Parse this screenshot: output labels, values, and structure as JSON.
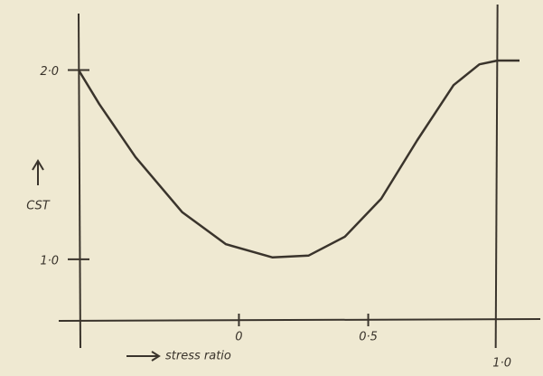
{
  "chart_data": {
    "type": "line",
    "xlabel": "stress ratio",
    "ylabel": "CST",
    "xlim": [
      -0.62,
      1.12
    ],
    "ylim": [
      0.675,
      2.37
    ],
    "xticks": [
      0,
      {
        "value": 0.5,
        "label": "0·5"
      },
      {
        "value": 1,
        "label": "1·0"
      }
    ],
    "yticks": [
      {
        "value": 1,
        "label": "1·0"
      },
      {
        "value": 2,
        "label": "2·0"
      }
    ],
    "color": "#3a342c",
    "x": [
      -0.62,
      -0.54,
      -0.4,
      -0.22,
      -0.05,
      0.13,
      0.27,
      0.41,
      0.55,
      0.69,
      0.83,
      0.93,
      1.0,
      1.085
    ],
    "values": [
      2.0,
      1.82,
      1.54,
      1.25,
      1.08,
      1.01,
      1.02,
      1.12,
      1.32,
      1.63,
      1.92,
      2.03,
      2.05,
      2.05
    ]
  }
}
